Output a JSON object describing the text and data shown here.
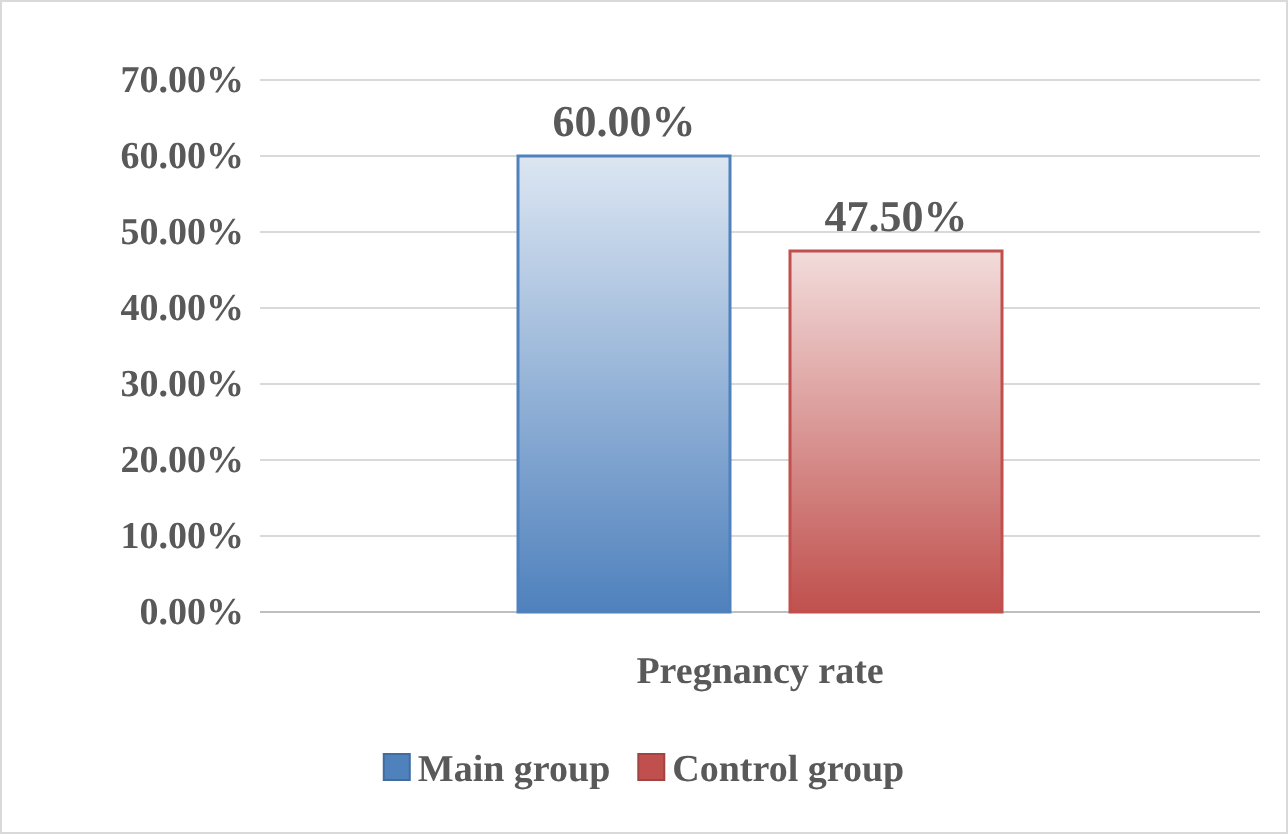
{
  "chart_data": {
    "type": "bar",
    "categories": [
      "Pregnancy rate"
    ],
    "series": [
      {
        "name": "Main group",
        "color": "#4f81bd",
        "values": [
          60
        ],
        "value_labels": [
          "60.00%"
        ]
      },
      {
        "name": "Control group",
        "color": "#c0504d",
        "values": [
          47.5
        ],
        "value_labels": [
          "47.50%"
        ]
      }
    ],
    "ylim": [
      0,
      70
    ],
    "yticks": [
      {
        "value": 0,
        "label": "0.00%"
      },
      {
        "value": 10,
        "label": "10.00%"
      },
      {
        "value": 20,
        "label": "20.00%"
      },
      {
        "value": 30,
        "label": "30.00%"
      },
      {
        "value": 40,
        "label": "40.00%"
      },
      {
        "value": 50,
        "label": "50.00%"
      },
      {
        "value": 60,
        "label": "60.00%"
      },
      {
        "value": 70,
        "label": "70.00%"
      }
    ],
    "grid": "y",
    "legend": "bottom"
  }
}
